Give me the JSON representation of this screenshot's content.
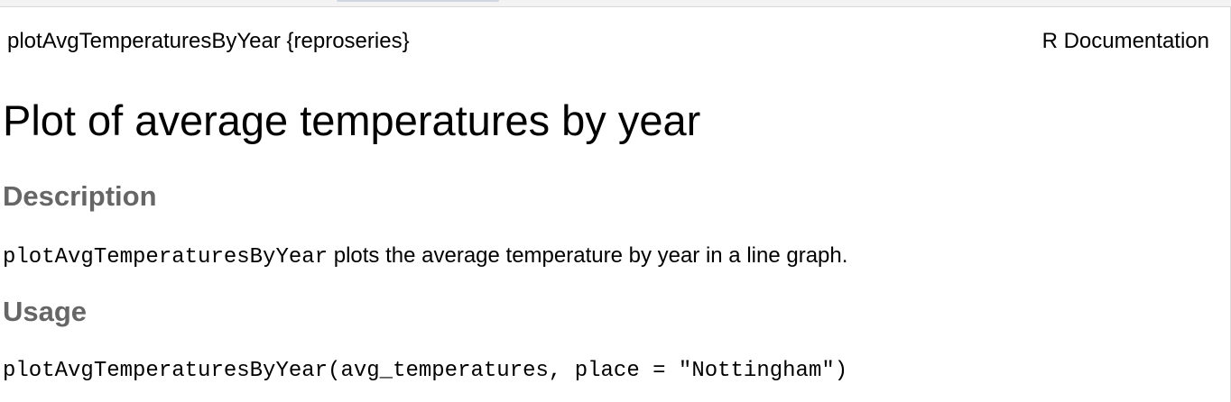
{
  "header": {
    "function_ref": "plotAvgTemperaturesByYear {reproseries}",
    "doc_label": "R Documentation"
  },
  "title": "Plot of average temperatures by year",
  "description": {
    "heading": "Description",
    "code_name": "plotAvgTemperaturesByYear",
    "text": " plots the average temperature by year in a line graph."
  },
  "usage": {
    "heading": "Usage",
    "code": "plotAvgTemperaturesByYear(avg_temperatures, place = \"Nottingham\")"
  }
}
